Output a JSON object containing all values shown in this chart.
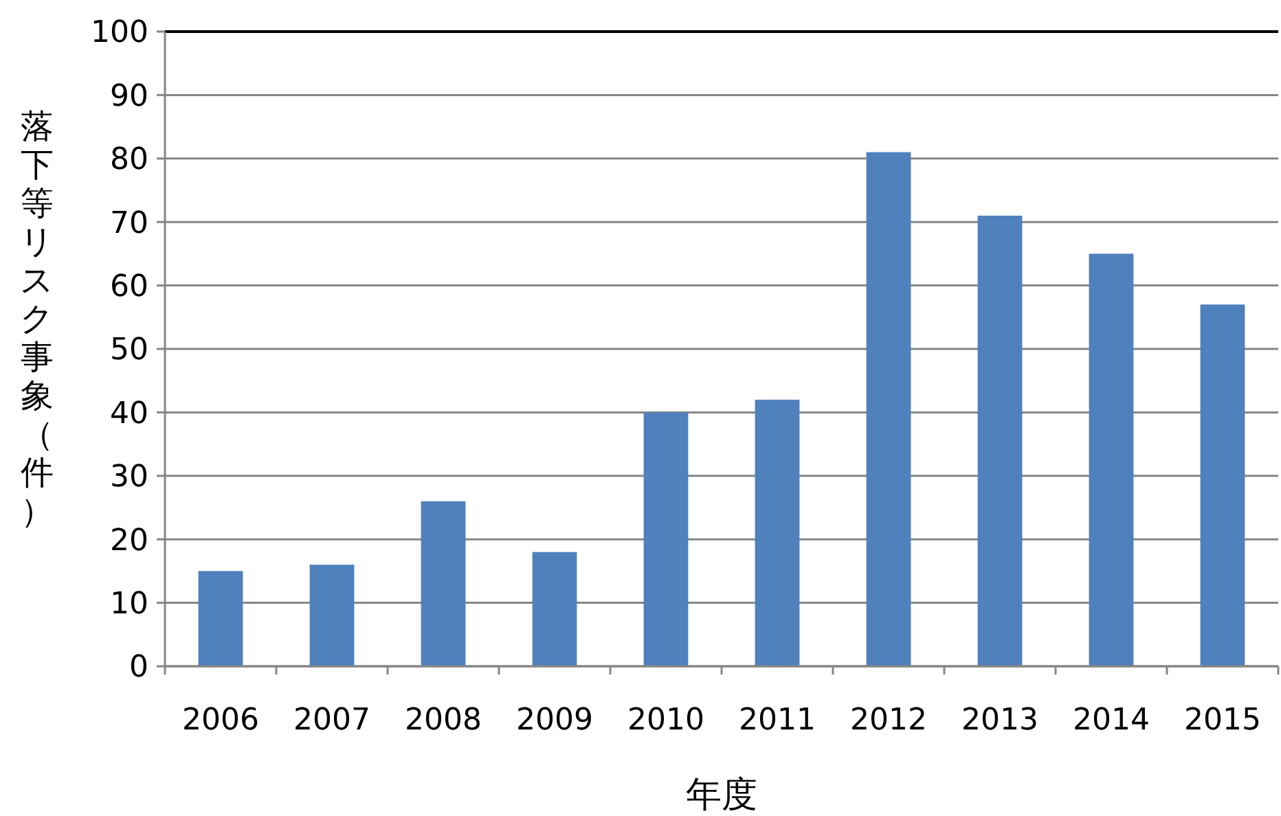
{
  "chart_data": {
    "type": "bar",
    "xlabel": "年度",
    "ylabel": "落下等リスク事象（件）",
    "categories": [
      "2006",
      "2007",
      "2008",
      "2009",
      "2010",
      "2011",
      "2012",
      "2013",
      "2014",
      "2015"
    ],
    "series": [
      {
        "color": "#4f81bd",
        "values": [
          15,
          16,
          26,
          18,
          40,
          42,
          81,
          71,
          65,
          57
        ]
      }
    ],
    "ylim": [
      0,
      100
    ],
    "yticks": [
      0,
      10,
      20,
      30,
      40,
      50,
      60,
      70,
      80,
      90,
      100
    ],
    "grid": "y"
  }
}
